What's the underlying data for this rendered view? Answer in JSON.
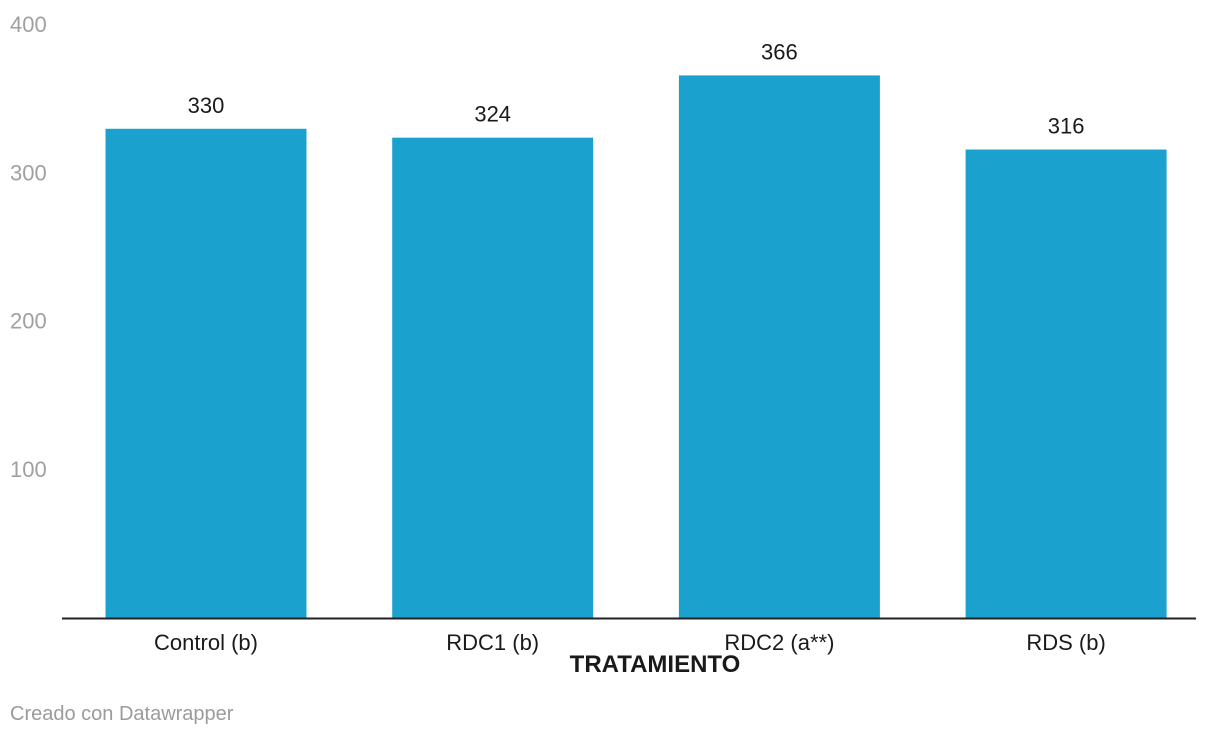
{
  "chart_data": {
    "type": "bar",
    "categories": [
      "Control (b)",
      "RDC1 (b)",
      "RDC2 (a**)",
      "RDS (b)"
    ],
    "values": [
      330,
      324,
      366,
      316
    ],
    "title": "",
    "xlabel": "TRATAMIENTO",
    "ylabel": "",
    "ylim": [
      0,
      400
    ],
    "yticks": [
      100,
      200,
      300,
      400
    ],
    "grid": false,
    "bar_color": "#1aa1ce"
  },
  "colors": {
    "bar": "#1aa1ce",
    "tick_label": "#a0a0a0",
    "value_label": "#1a1a1a",
    "axis": "#222222",
    "credit": "#9b9b9b"
  },
  "footer": {
    "credit": "Creado con Datawrapper"
  }
}
